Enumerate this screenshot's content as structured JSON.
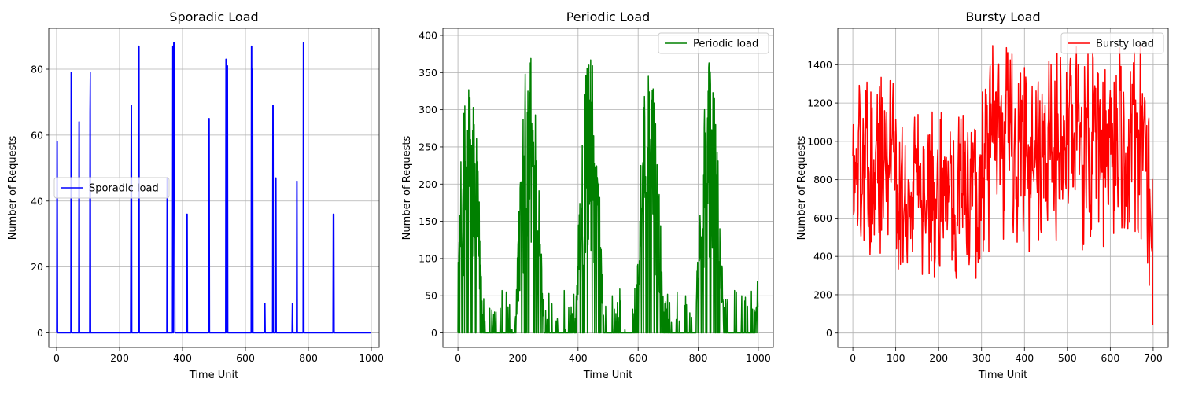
{
  "chart_data": [
    {
      "type": "line",
      "title": "Sporadic Load",
      "xlabel": "Time Unit",
      "ylabel": "Number of Requests",
      "xlim": [
        -25,
        1025
      ],
      "ylim": [
        -4.4,
        92.4
      ],
      "xticks": [
        0,
        200,
        400,
        600,
        800,
        1000
      ],
      "yticks": [
        0,
        20,
        40,
        60,
        80
      ],
      "grid": true,
      "legend_position": "center-left",
      "series": [
        {
          "name": "Sporadic load",
          "color": "#0000ff",
          "x": [
            0,
            1,
            2,
            3,
            4,
            45,
            46,
            47,
            48,
            70,
            71,
            72,
            73,
            105,
            106,
            107,
            108,
            235,
            236,
            237,
            238,
            239,
            260,
            261,
            262,
            263,
            350,
            351,
            352,
            368,
            369,
            370,
            371,
            372,
            373,
            374,
            375,
            376,
            413,
            414,
            415,
            416,
            483,
            484,
            485,
            486,
            537,
            538,
            539,
            540,
            541,
            542,
            543,
            544,
            618,
            619,
            620,
            621,
            622,
            623,
            624,
            660,
            661,
            662,
            663,
            686,
            687,
            688,
            689,
            695,
            696,
            697,
            698,
            748,
            749,
            750,
            751,
            762,
            763,
            764,
            765,
            783,
            784,
            785,
            786,
            878,
            879,
            880,
            881,
            882,
            1000
          ],
          "y": [
            0,
            58,
            58,
            0,
            0,
            0,
            79,
            79,
            0,
            0,
            64,
            64,
            0,
            0,
            67,
            79,
            0,
            0,
            36,
            69,
            69,
            0,
            0,
            87,
            87,
            0,
            0,
            47,
            0,
            0,
            87,
            87,
            0,
            88,
            88,
            88,
            47,
            0,
            0,
            36,
            36,
            0,
            0,
            65,
            65,
            0,
            0,
            83,
            83,
            0,
            81,
            81,
            81,
            0,
            0,
            87,
            87,
            0,
            80,
            80,
            0,
            0,
            9,
            9,
            0,
            0,
            69,
            69,
            0,
            0,
            47,
            47,
            0,
            0,
            9,
            9,
            0,
            0,
            46,
            46,
            0,
            0,
            88,
            88,
            0,
            0,
            36,
            36,
            36,
            0,
            0
          ]
        }
      ]
    },
    {
      "type": "line",
      "title": "Periodic Load",
      "xlabel": "Time Unit",
      "ylabel": "Number of Requests",
      "xlim": [
        -50,
        1050
      ],
      "ylim": [
        -19.5,
        409.5
      ],
      "xticks": [
        0,
        200,
        400,
        600,
        800,
        1000
      ],
      "yticks": [
        0,
        50,
        100,
        150,
        200,
        250,
        300,
        350,
        400
      ],
      "grid": true,
      "legend_position": "top-right",
      "series": [
        {
          "name": "Periodic load",
          "color": "#008000",
          "period": 200,
          "points": 1000,
          "peak_values": [
            362,
            389,
            380,
            370,
            368
          ]
        }
      ]
    },
    {
      "type": "line",
      "title": "Bursty Load",
      "xlabel": "Time Unit",
      "ylabel": "Number of Requests",
      "xlim": [
        -35,
        735
      ],
      "ylim": [
        -75,
        1590
      ],
      "xticks": [
        0,
        100,
        200,
        300,
        400,
        500,
        600,
        700
      ],
      "yticks": [
        0,
        200,
        400,
        600,
        800,
        1000,
        1200,
        1400
      ],
      "grid": true,
      "legend_position": "top-right",
      "series": [
        {
          "name": "Bursty load",
          "color": "#ff0000",
          "points": 700,
          "segments": [
            {
              "x": [
                0,
                100
              ],
              "low": 220,
              "high": 1380
            },
            {
              "x": [
                100,
                300
              ],
              "low": 120,
              "high": 1180
            },
            {
              "x": [
                300,
                680
              ],
              "low": 230,
              "high": 1515
            },
            {
              "x": [
                680,
                699
              ],
              "low": 40,
              "high": 1230
            }
          ]
        }
      ]
    }
  ]
}
